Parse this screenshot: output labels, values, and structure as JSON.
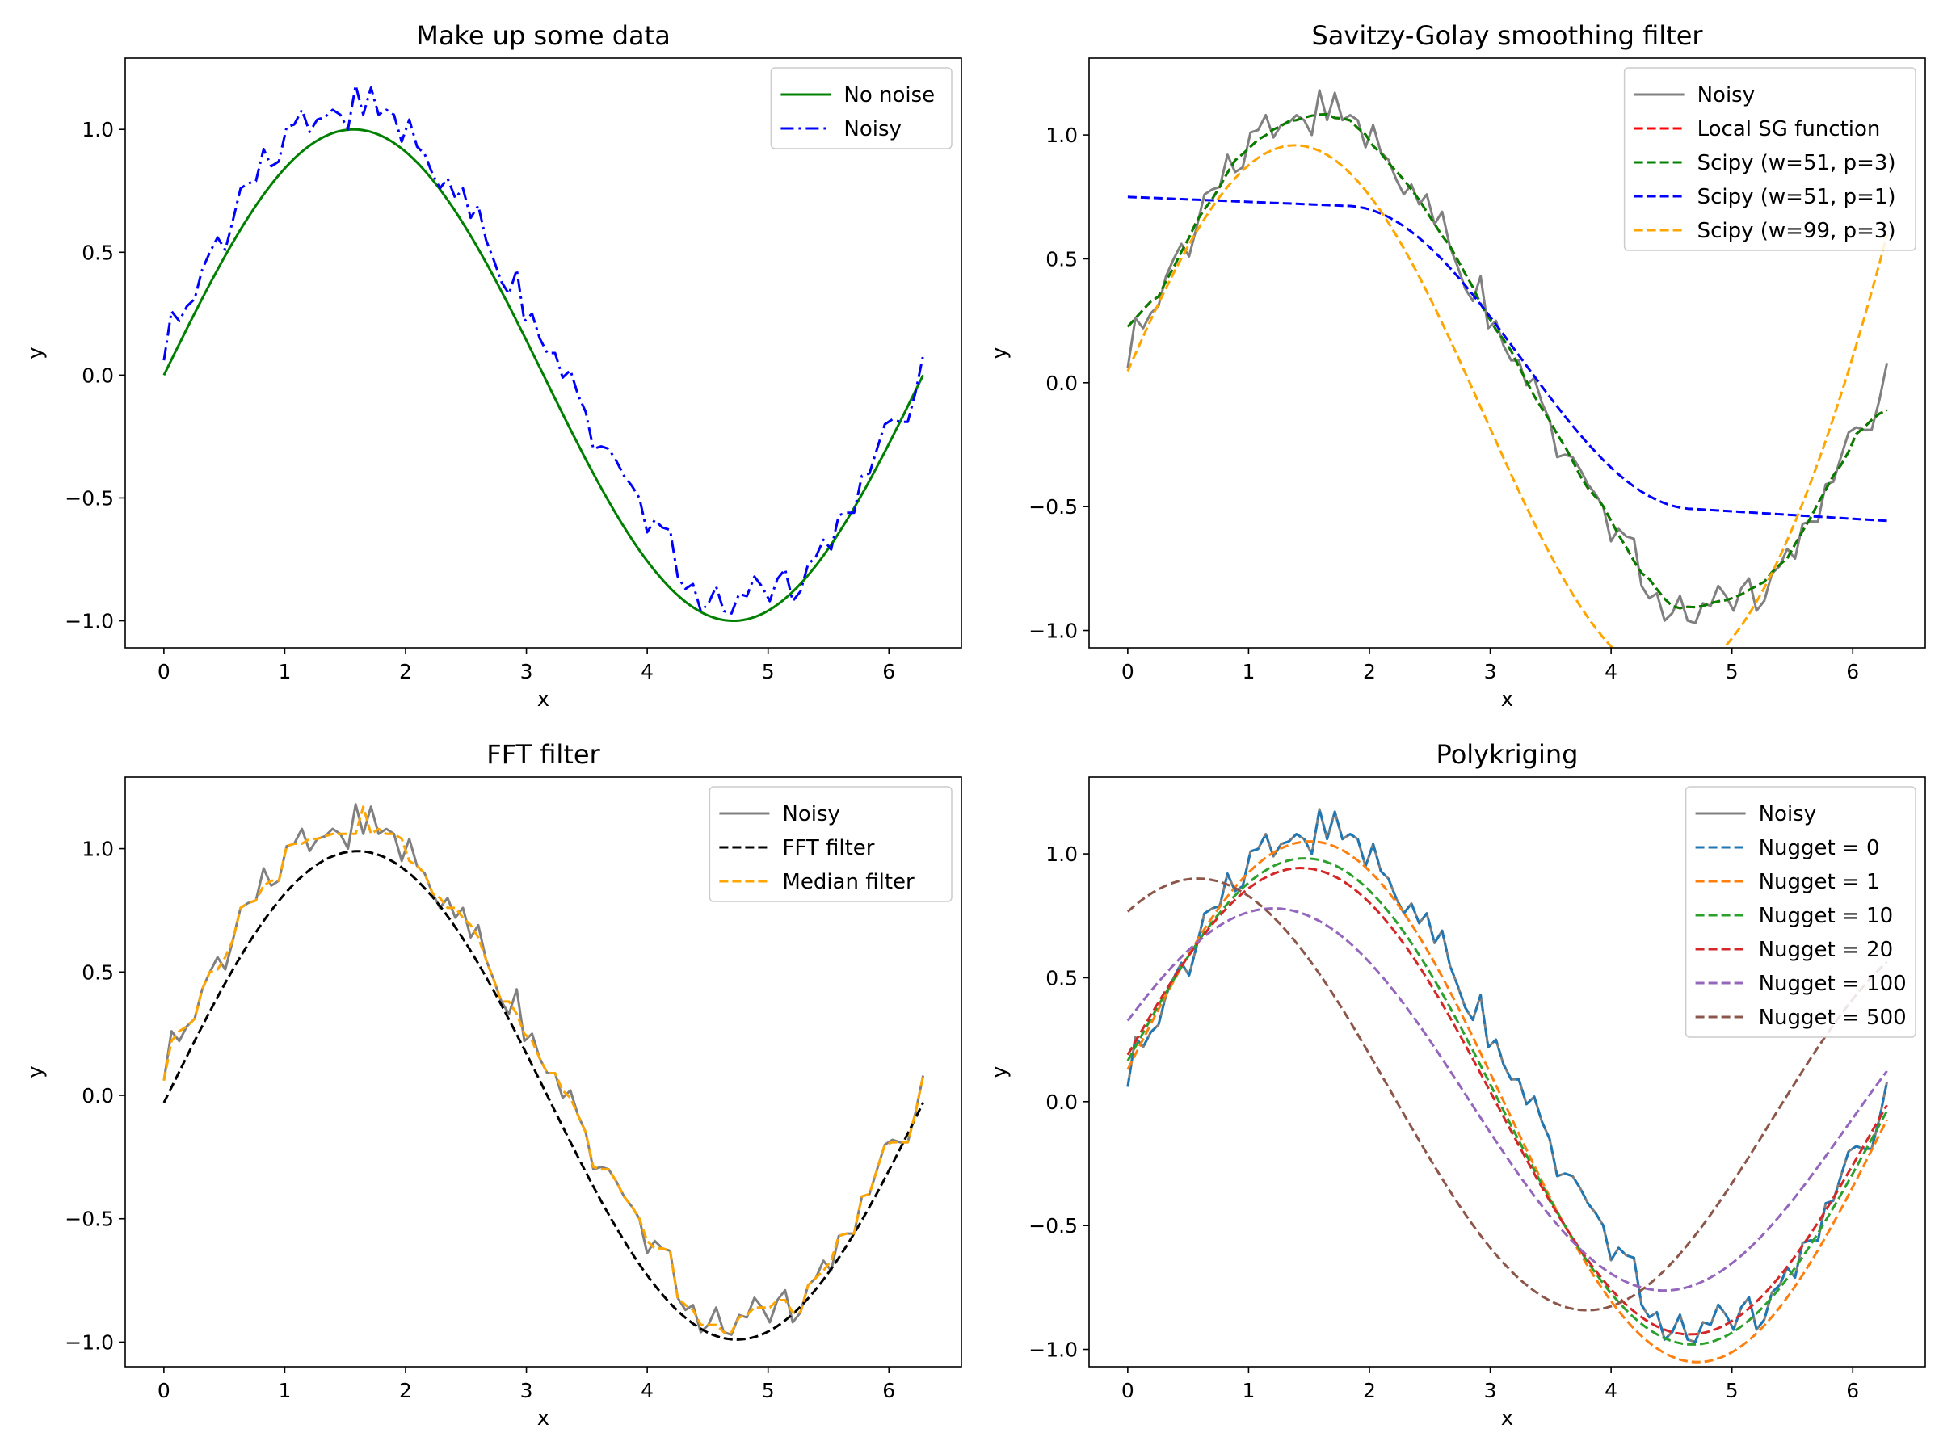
{
  "chart_data": [
    {
      "id": "p1",
      "type": "line",
      "title": "Make up some data",
      "xlabel": "x",
      "ylabel": "y",
      "xlim": [
        -0.32,
        6.6
      ],
      "ylim": [
        -1.11,
        1.29
      ],
      "xticks": [
        0,
        1,
        2,
        3,
        4,
        5,
        6
      ],
      "yticks": [
        -1.0,
        -0.5,
        0.0,
        0.5,
        1.0
      ],
      "legend": "top-right",
      "grid": false,
      "series": [
        {
          "name": "No noise",
          "color": "#008000",
          "dash": "solid",
          "kind": "sine"
        },
        {
          "name": "Noisy",
          "color": "#0000ff",
          "dash": "dashdot",
          "kind": "noisy"
        }
      ]
    },
    {
      "id": "p2",
      "type": "line",
      "title": "Savitzy-Golay smoothing filter",
      "xlabel": "x",
      "ylabel": "y",
      "xlim": [
        -0.32,
        6.6
      ],
      "ylim": [
        -1.07,
        1.31
      ],
      "xticks": [
        0,
        1,
        2,
        3,
        4,
        5,
        6
      ],
      "yticks": [
        -1.0,
        -0.5,
        0.0,
        0.5,
        1.0
      ],
      "legend": "top-right",
      "grid": false,
      "series": [
        {
          "name": "Noisy",
          "color": "#808080",
          "dash": "solid",
          "kind": "noisy"
        },
        {
          "name": "Local SG function",
          "color": "#ff0000",
          "dash": "dashed",
          "kind": "sg"
        },
        {
          "name": "Scipy (w=51, p=3)",
          "color": "#008000",
          "dash": "dashed",
          "kind": "sg"
        },
        {
          "name": "Scipy (w=51, p=1)",
          "color": "#0000ff",
          "dash": "dashed",
          "kind": "sg_p1"
        },
        {
          "name": "Scipy (w=99, p=3)",
          "color": "#ffa500",
          "dash": "dashed",
          "kind": "sg_w99"
        }
      ]
    },
    {
      "id": "p3",
      "type": "line",
      "title": "FFT filter",
      "xlabel": "x",
      "ylabel": "y",
      "xlim": [
        -0.32,
        6.6
      ],
      "ylim": [
        -1.1,
        1.29
      ],
      "xticks": [
        0,
        1,
        2,
        3,
        4,
        5,
        6
      ],
      "yticks": [
        -1.0,
        -0.5,
        0.0,
        0.5,
        1.0
      ],
      "legend": "top-right",
      "grid": false,
      "series": [
        {
          "name": "Noisy",
          "color": "#808080",
          "dash": "solid",
          "kind": "noisy"
        },
        {
          "name": "FFT filter",
          "color": "#000000",
          "dash": "dashed",
          "kind": "fft"
        },
        {
          "name": "Median filter",
          "color": "#ffa500",
          "dash": "dashed",
          "kind": "median"
        }
      ]
    },
    {
      "id": "p4",
      "type": "line",
      "title": "Polykriging",
      "xlabel": "x",
      "ylabel": "y",
      "xlim": [
        -0.32,
        6.6
      ],
      "ylim": [
        -1.07,
        1.31
      ],
      "xticks": [
        0,
        1,
        2,
        3,
        4,
        5,
        6
      ],
      "yticks": [
        -1.0,
        -0.5,
        0.0,
        0.5,
        1.0
      ],
      "legend": "top-right",
      "grid": false,
      "series": [
        {
          "name": "Noisy",
          "color": "#808080",
          "dash": "solid",
          "kind": "noisy"
        },
        {
          "name": "Nugget = 0",
          "color": "#1f77b4",
          "dash": "dashed",
          "kind": "noisy"
        },
        {
          "name": "Nugget = 1",
          "color": "#ff7f0e",
          "dash": "dashed",
          "kind": "krig",
          "a": 1.0,
          "c": 0.1,
          "ph": 0.03
        },
        {
          "name": "Nugget = 10",
          "color": "#2ca02c",
          "dash": "dashed",
          "kind": "krig",
          "a": 0.93,
          "c": 0.1,
          "ph": 0.07
        },
        {
          "name": "Nugget = 20",
          "color": "#d62728",
          "dash": "dashed",
          "kind": "krig",
          "a": 0.89,
          "c": 0.1,
          "ph": 0.1
        },
        {
          "name": "Nugget = 100",
          "color": "#9467bd",
          "dash": "dashed",
          "kind": "krig",
          "a": 0.72,
          "c": 0.1,
          "ph": 0.32
        },
        {
          "name": "Nugget = 500",
          "color": "#8c564b",
          "dash": "dashed",
          "kind": "krig",
          "a": 0.82,
          "c": 0.1,
          "ph": 0.95
        }
      ]
    }
  ],
  "noisy_points": {
    "x": [
      0.0,
      0.063,
      0.127,
      0.19,
      0.254,
      0.317,
      0.381,
      0.444,
      0.508,
      0.571,
      0.635,
      0.698,
      0.762,
      0.825,
      0.889,
      0.952,
      1.016,
      1.079,
      1.142,
      1.206,
      1.269,
      1.333,
      1.396,
      1.46,
      1.523,
      1.587,
      1.65,
      1.714,
      1.777,
      1.841,
      1.904,
      1.968,
      2.031,
      2.095,
      2.158,
      2.222,
      2.285,
      2.348,
      2.412,
      2.475,
      2.539,
      2.602,
      2.666,
      2.729,
      2.793,
      2.856,
      2.92,
      2.983,
      3.047,
      3.11,
      3.173,
      3.237,
      3.3,
      3.364,
      3.427,
      3.491,
      3.554,
      3.618,
      3.681,
      3.745,
      3.808,
      3.872,
      3.935,
      3.999,
      4.062,
      4.125,
      4.189,
      4.252,
      4.316,
      4.379,
      4.443,
      4.506,
      4.57,
      4.633,
      4.697,
      4.76,
      4.824,
      4.887,
      4.95,
      5.014,
      5.077,
      5.141,
      5.204,
      5.268,
      5.331,
      5.395,
      5.458,
      5.522,
      5.585,
      5.649,
      5.712,
      5.776,
      5.839,
      5.902,
      5.966,
      6.029,
      6.093,
      6.156,
      6.22,
      6.283
    ],
    "y": [
      0.06,
      0.26,
      0.22,
      0.28,
      0.31,
      0.43,
      0.5,
      0.56,
      0.51,
      0.63,
      0.76,
      0.78,
      0.79,
      0.92,
      0.85,
      0.87,
      1.01,
      1.02,
      1.08,
      0.99,
      1.04,
      1.05,
      1.08,
      1.06,
      1.0,
      1.18,
      1.06,
      1.17,
      1.06,
      1.08,
      1.06,
      0.95,
      1.04,
      0.93,
      0.9,
      0.82,
      0.76,
      0.8,
      0.72,
      0.76,
      0.64,
      0.69,
      0.55,
      0.47,
      0.38,
      0.33,
      0.43,
      0.22,
      0.25,
      0.15,
      0.09,
      0.09,
      -0.01,
      0.02,
      -0.08,
      -0.15,
      -0.3,
      -0.29,
      -0.3,
      -0.35,
      -0.41,
      -0.45,
      -0.5,
      -0.64,
      -0.59,
      -0.62,
      -0.63,
      -0.82,
      -0.87,
      -0.85,
      -0.96,
      -0.93,
      -0.86,
      -0.96,
      -0.97,
      -0.89,
      -0.9,
      -0.82,
      -0.86,
      -0.92,
      -0.83,
      -0.79,
      -0.92,
      -0.88,
      -0.77,
      -0.74,
      -0.67,
      -0.71,
      -0.57,
      -0.56,
      -0.56,
      -0.41,
      -0.4,
      -0.3,
      -0.2,
      -0.18,
      -0.19,
      -0.19,
      -0.07,
      0.08
    ]
  }
}
